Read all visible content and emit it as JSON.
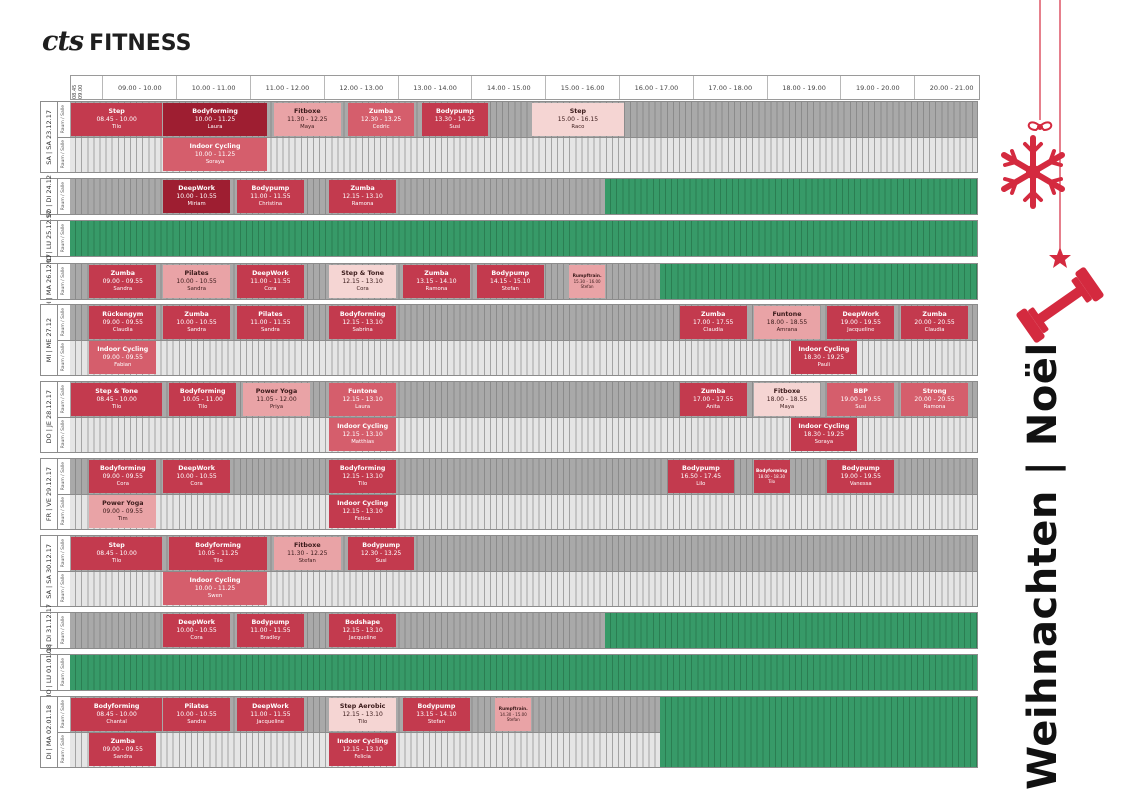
{
  "brand": {
    "mark": "cts",
    "name": "FITNESS"
  },
  "header": {
    "first_col": "08.45 09.00",
    "slots": [
      "09.00 - 10.00",
      "10.00 - 11.00",
      "11.00 - 12.00",
      "12.00 - 13.00",
      "13.00 - 14.00",
      "14.00 - 15.00",
      "15.00 - 16.00",
      "16.00 - 17.00",
      "17.00 - 18.00",
      "18.00 - 19.00",
      "19.00 - 20.00",
      "20.00 - 21.00"
    ]
  },
  "side_title": "Weihnachten | Noël",
  "room_labels": {
    "main": "Raum / Salle",
    "second": "Raum / Salle"
  },
  "colors": {
    "class_dark": "#9e1e31",
    "class_main": "#c33a4e",
    "class_mid": "#d55e6c",
    "class_pale": "#e9a3a6",
    "class_faint": "#f5d5d3",
    "closed": "#379a68",
    "inactive": "#a9a9a9",
    "accent": "#d42a3f"
  },
  "days": [
    {
      "label": "SA | SA 23.12.17",
      "classes": [
        {
          "name": "Step",
          "time": "08.45 - 10.00",
          "instructor": "Tilo",
          "start": 8.75,
          "end": 10.0,
          "lane": 0,
          "tone": "main"
        },
        {
          "name": "Bodyforming",
          "time": "10.00 - 11.25",
          "instructor": "Laura",
          "start": 10.0,
          "end": 11.417,
          "lane": 0,
          "tone": "dark"
        },
        {
          "name": "Fitboxe",
          "time": "11.30 - 12.25",
          "instructor": "Maya",
          "start": 11.5,
          "end": 12.417,
          "lane": 0,
          "tone": "pale"
        },
        {
          "name": "Zumba",
          "time": "12.30 - 13.25",
          "instructor": "Cedric",
          "start": 12.5,
          "end": 13.417,
          "lane": 0,
          "tone": "mid"
        },
        {
          "name": "Bodypump",
          "time": "13.30 - 14.25",
          "instructor": "Susi",
          "start": 13.5,
          "end": 14.417,
          "lane": 0,
          "tone": "main"
        },
        {
          "name": "Step",
          "time": "15.00 - 16.15",
          "instructor": "Raco",
          "start": 15.0,
          "end": 16.25,
          "lane": 0,
          "tone": "faint"
        },
        {
          "name": "Indoor Cycling",
          "time": "10.00 - 11.25",
          "instructor": "Soraya",
          "start": 10.0,
          "end": 11.417,
          "lane": 1,
          "tone": "mid"
        }
      ]
    },
    {
      "label": "SO | DI 24.12",
      "classes": [
        {
          "name": "DeepWork",
          "time": "10.00 - 10.55",
          "instructor": "Miriam",
          "start": 10.0,
          "end": 10.917,
          "lane": 0,
          "tone": "dark"
        },
        {
          "name": "Bodypump",
          "time": "11.00 - 11.55",
          "instructor": "Christina",
          "start": 11.0,
          "end": 11.917,
          "lane": 0,
          "tone": "main"
        },
        {
          "name": "Zumba",
          "time": "12.15 - 13.10",
          "instructor": "Ramona",
          "start": 12.25,
          "end": 13.167,
          "lane": 0,
          "tone": "main"
        }
      ]
    },
    {
      "label": "MO | LU 25.12.17",
      "classes": []
    },
    {
      "label": "DI | MA 26.12.17",
      "classes": [
        {
          "name": "Zumba",
          "time": "09.00 - 09.55",
          "instructor": "Sandra",
          "start": 9.0,
          "end": 9.917,
          "lane": 0,
          "tone": "main"
        },
        {
          "name": "Pilates",
          "time": "10.00 - 10.55",
          "instructor": "Sandra",
          "start": 10.0,
          "end": 10.917,
          "lane": 0,
          "tone": "pale"
        },
        {
          "name": "DeepWork",
          "time": "11.00 - 11.55",
          "instructor": "Cora",
          "start": 11.0,
          "end": 11.917,
          "lane": 0,
          "tone": "main"
        },
        {
          "name": "Step & Tone",
          "time": "12.15 - 13.10",
          "instructor": "Cora",
          "start": 12.25,
          "end": 13.167,
          "lane": 0,
          "tone": "faint"
        },
        {
          "name": "Zumba",
          "time": "13.15 - 14.10",
          "instructor": "Ramona",
          "start": 13.25,
          "end": 14.167,
          "lane": 0,
          "tone": "main"
        },
        {
          "name": "Bodypump",
          "time": "14.15 - 15.10",
          "instructor": "Stefan",
          "start": 14.25,
          "end": 15.167,
          "lane": 0,
          "tone": "main"
        },
        {
          "name": "Rumpftrain.",
          "time": "15.30 - 16.00",
          "instructor": "Stefan",
          "start": 15.5,
          "end": 16.0,
          "lane": 0,
          "tone": "pale",
          "small": true
        }
      ]
    },
    {
      "label": "MI | ME 27.12",
      "classes": [
        {
          "name": "Rückengym",
          "time": "09.00 - 09.55",
          "instructor": "Claudia",
          "start": 9.0,
          "end": 9.917,
          "lane": 0,
          "tone": "main"
        },
        {
          "name": "Zumba",
          "time": "10.00 - 10.55",
          "instructor": "Sandra",
          "start": 10.0,
          "end": 10.917,
          "lane": 0,
          "tone": "main"
        },
        {
          "name": "Pilates",
          "time": "11.00 - 11.55",
          "instructor": "Sandra",
          "start": 11.0,
          "end": 11.917,
          "lane": 0,
          "tone": "main"
        },
        {
          "name": "Bodyforming",
          "time": "12.15 - 13.10",
          "instructor": "Sabrina",
          "start": 12.25,
          "end": 13.167,
          "lane": 0,
          "tone": "main"
        },
        {
          "name": "Zumba",
          "time": "17.00 - 17.55",
          "instructor": "Claudia",
          "start": 17.0,
          "end": 17.917,
          "lane": 0,
          "tone": "main"
        },
        {
          "name": "Funtone",
          "time": "18.00 - 18.55",
          "instructor": "Amrana",
          "start": 18.0,
          "end": 18.917,
          "lane": 0,
          "tone": "pale"
        },
        {
          "name": "DeepWork",
          "time": "19.00 - 19.55",
          "instructor": "Jacqueline",
          "start": 19.0,
          "end": 19.917,
          "lane": 0,
          "tone": "main"
        },
        {
          "name": "Zumba",
          "time": "20.00 - 20.55",
          "instructor": "Claudia",
          "start": 20.0,
          "end": 20.917,
          "lane": 0,
          "tone": "main"
        },
        {
          "name": "Indoor Cycling",
          "time": "09.00 - 09.55",
          "instructor": "Fabian",
          "start": 9.0,
          "end": 9.917,
          "lane": 1,
          "tone": "mid"
        },
        {
          "name": "Indoor Cycling",
          "time": "18.30 - 19.25",
          "instructor": "Pauli",
          "start": 18.5,
          "end": 19.417,
          "lane": 1,
          "tone": "main"
        }
      ]
    },
    {
      "label": "DO | JE 28.12.17",
      "classes": [
        {
          "name": "Step & Tone",
          "time": "08.45 - 10.00",
          "instructor": "Tilo",
          "start": 8.75,
          "end": 10.0,
          "lane": 0,
          "tone": "main"
        },
        {
          "name": "Bodyforming",
          "time": "10.05 - 11.00",
          "instructor": "Tilo",
          "start": 10.083,
          "end": 11.0,
          "lane": 0,
          "tone": "main"
        },
        {
          "name": "Power Yoga",
          "time": "11.05 - 12.00",
          "instructor": "Priya",
          "start": 11.083,
          "end": 12.0,
          "lane": 0,
          "tone": "pale"
        },
        {
          "name": "Funtone",
          "time": "12.15 - 13.10",
          "instructor": "Laura",
          "start": 12.25,
          "end": 13.167,
          "lane": 0,
          "tone": "mid"
        },
        {
          "name": "Zumba",
          "time": "17.00 - 17.55",
          "instructor": "Anita",
          "start": 17.0,
          "end": 17.917,
          "lane": 0,
          "tone": "main"
        },
        {
          "name": "Fitboxe",
          "time": "18.00 - 18.55",
          "instructor": "Maya",
          "start": 18.0,
          "end": 18.917,
          "lane": 0,
          "tone": "faint"
        },
        {
          "name": "BBP",
          "time": "19.00 - 19.55",
          "instructor": "Susi",
          "start": 19.0,
          "end": 19.917,
          "lane": 0,
          "tone": "mid"
        },
        {
          "name": "Strong",
          "time": "20.00 - 20.55",
          "instructor": "Ramona",
          "start": 20.0,
          "end": 20.917,
          "lane": 0,
          "tone": "mid"
        },
        {
          "name": "Indoor Cycling",
          "time": "12.15 - 13.10",
          "instructor": "Matthias",
          "start": 12.25,
          "end": 13.167,
          "lane": 1,
          "tone": "mid"
        },
        {
          "name": "Indoor Cycling",
          "time": "18.30 - 19.25",
          "instructor": "Soraya",
          "start": 18.5,
          "end": 19.417,
          "lane": 1,
          "tone": "main"
        }
      ]
    },
    {
      "label": "FR | VE 29.12.17",
      "classes": [
        {
          "name": "Bodyforming",
          "time": "09.00 - 09.55",
          "instructor": "Cora",
          "start": 9.0,
          "end": 9.917,
          "lane": 0,
          "tone": "main"
        },
        {
          "name": "DeepWork",
          "time": "10.00 - 10.55",
          "instructor": "Cora",
          "start": 10.0,
          "end": 10.917,
          "lane": 0,
          "tone": "main"
        },
        {
          "name": "Bodyforming",
          "time": "12.15 - 13.10",
          "instructor": "Tilo",
          "start": 12.25,
          "end": 13.167,
          "lane": 0,
          "tone": "main"
        },
        {
          "name": "Bodypump",
          "time": "16.50 - 17.45",
          "instructor": "Lilo",
          "start": 16.833,
          "end": 17.75,
          "lane": 0,
          "tone": "main"
        },
        {
          "name": "Bodyforming",
          "time": "18.00 - 18.30",
          "instructor": "Tilo",
          "start": 18.0,
          "end": 18.5,
          "lane": 0,
          "tone": "main",
          "small": true
        },
        {
          "name": "Bodypump",
          "time": "19.00 - 19.55",
          "instructor": "Vanessa",
          "start": 19.0,
          "end": 19.917,
          "lane": 0,
          "tone": "main"
        },
        {
          "name": "Power Yoga",
          "time": "09.00 - 09.55",
          "instructor": "Tim",
          "start": 9.0,
          "end": 9.917,
          "lane": 1,
          "tone": "pale"
        },
        {
          "name": "Indoor Cycling",
          "time": "12.15 - 13.10",
          "instructor": "Fetica",
          "start": 12.25,
          "end": 13.167,
          "lane": 1,
          "tone": "main"
        }
      ]
    },
    {
      "label": "SA | SA 30.12.17",
      "classes": [
        {
          "name": "Step",
          "time": "08.45 - 10.00",
          "instructor": "Tilo",
          "start": 8.75,
          "end": 10.0,
          "lane": 0,
          "tone": "main"
        },
        {
          "name": "Bodyforming",
          "time": "10.05 - 11.25",
          "instructor": "Tilo",
          "start": 10.083,
          "end": 11.417,
          "lane": 0,
          "tone": "main"
        },
        {
          "name": "Fitboxe",
          "time": "11.30 - 12.25",
          "instructor": "Stefan",
          "start": 11.5,
          "end": 12.417,
          "lane": 0,
          "tone": "pale"
        },
        {
          "name": "Bodypump",
          "time": "12.30 - 13.25",
          "instructor": "Susi",
          "start": 12.5,
          "end": 13.417,
          "lane": 0,
          "tone": "main"
        },
        {
          "name": "Indoor Cycling",
          "time": "10.00 - 11.25",
          "instructor": "Swen",
          "start": 10.0,
          "end": 11.417,
          "lane": 1,
          "tone": "mid"
        }
      ]
    },
    {
      "label": "SO | DI 31.12.17",
      "classes": [
        {
          "name": "DeepWork",
          "time": "10.00 - 10.55",
          "instructor": "Cora",
          "start": 10.0,
          "end": 10.917,
          "lane": 0,
          "tone": "main"
        },
        {
          "name": "Bodypump",
          "time": "11.00 - 11.55",
          "instructor": "Bradley",
          "start": 11.0,
          "end": 11.917,
          "lane": 0,
          "tone": "main"
        },
        {
          "name": "Bodshape",
          "time": "12.15 - 13.10",
          "instructor": "Jacqueline",
          "start": 12.25,
          "end": 13.167,
          "lane": 0,
          "tone": "main"
        }
      ]
    },
    {
      "label": "MO | LU 01.01.18",
      "classes": []
    },
    {
      "label": "DI | MA 02.01.18",
      "classes": [
        {
          "name": "Bodyforming",
          "time": "08.45 - 10.00",
          "instructor": "Chantal",
          "start": 8.75,
          "end": 10.0,
          "lane": 0,
          "tone": "main"
        },
        {
          "name": "Pilates",
          "time": "10.00 - 10.55",
          "instructor": "Sandra",
          "start": 10.0,
          "end": 10.917,
          "lane": 0,
          "tone": "main"
        },
        {
          "name": "DeepWork",
          "time": "11.00 - 11.55",
          "instructor": "Jacqueline",
          "start": 11.0,
          "end": 11.917,
          "lane": 0,
          "tone": "main"
        },
        {
          "name": "Step Aerobic",
          "time": "12.15 - 13.10",
          "instructor": "Tilo",
          "start": 12.25,
          "end": 13.167,
          "lane": 0,
          "tone": "faint"
        },
        {
          "name": "Bodypump",
          "time": "13.15 - 14.10",
          "instructor": "Stefan",
          "start": 13.25,
          "end": 14.167,
          "lane": 0,
          "tone": "main"
        },
        {
          "name": "Rumpftrain.",
          "time": "14.30 - 15.00",
          "instructor": "Stefan",
          "start": 14.5,
          "end": 15.0,
          "lane": 0,
          "tone": "pale",
          "small": true
        },
        {
          "name": "Zumba",
          "time": "09.00 - 09.55",
          "instructor": "Sandra",
          "start": 9.0,
          "end": 9.917,
          "lane": 1,
          "tone": "main"
        },
        {
          "name": "Indoor Cycling",
          "time": "12.15 - 13.10",
          "instructor": "Felicia",
          "start": 12.25,
          "end": 13.167,
          "lane": 1,
          "tone": "main"
        }
      ]
    }
  ]
}
